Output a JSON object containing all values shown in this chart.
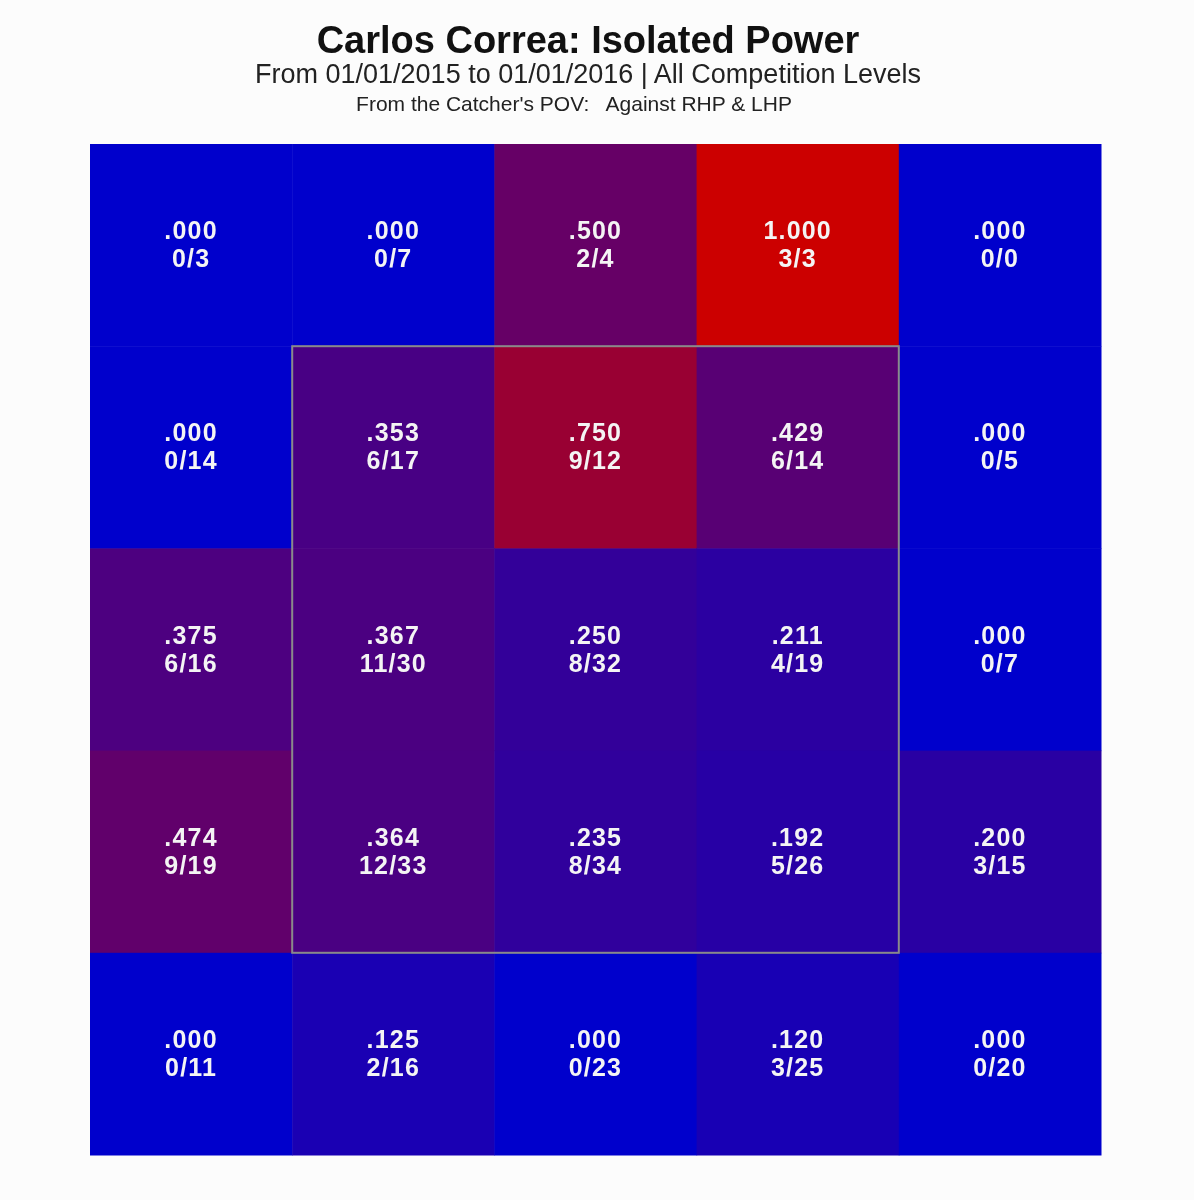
{
  "chart_data": {
    "type": "heatmap",
    "title": "Carlos Correa: Isolated Power",
    "subtitle": "From 01/01/2015 to 01/01/2016 | All Competition Levels",
    "annotations": [
      "From the Catcher's POV:   Against RHP & LHP",
      "0/3",
      "0/7",
      "2/4",
      "3/3",
      "0/0",
      "0/14",
      "6/17",
      "9/12",
      "6/14",
      "0/5",
      "6/16",
      "11/30",
      "8/32",
      "4/19",
      "0/7",
      "9/19",
      "12/33",
      "8/34",
      "5/26",
      "3/15",
      "0/11",
      "2/16",
      "0/23",
      "3/25",
      "0/20"
    ],
    "categories": [
      null,
      null,
      null,
      null,
      null
    ],
    "y_categories": [
      null,
      null,
      null,
      null,
      null
    ],
    "colors": [
      "#0000cc",
      "#cc0000"
    ],
    "data_labels": true,
    "cells": [
      [
        0,
        0,
        0.5,
        1,
        0
      ],
      [
        0,
        0.353,
        0.75,
        0.429,
        0
      ],
      [
        0.375,
        0.367,
        0.25,
        0.211,
        0
      ],
      [
        0.474,
        0.364,
        0.235,
        0.192,
        0.2
      ],
      [
        0,
        0.125,
        0,
        0.12,
        0
      ]
    ],
    "cell_labels": [
      [
        ".000",
        ".000",
        ".500",
        "1.000",
        ".000"
      ],
      [
        ".000",
        ".353",
        ".750",
        ".429",
        ".000"
      ],
      [
        ".375",
        ".367",
        ".250",
        ".211",
        ".000"
      ],
      [
        ".474",
        ".364",
        ".235",
        ".192",
        ".200"
      ],
      [
        ".000",
        ".125",
        ".000",
        ".120",
        ".000"
      ]
    ]
  }
}
